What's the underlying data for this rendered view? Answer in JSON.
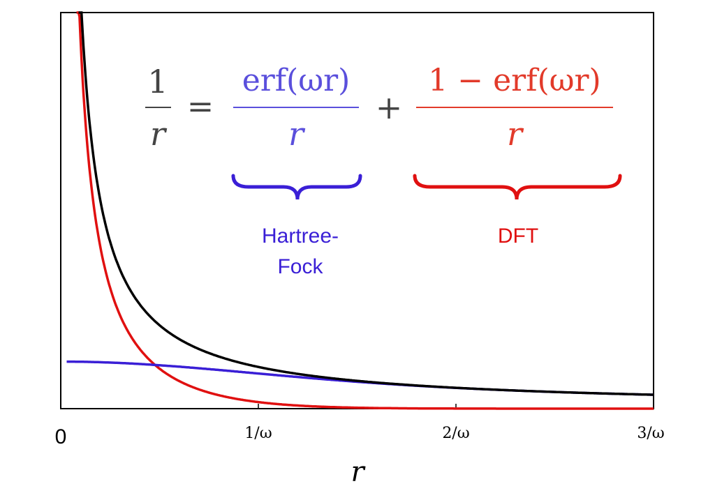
{
  "chart_data": {
    "type": "line",
    "title": "",
    "xlabel": "r",
    "ylabel": "",
    "xlim": [
      0,
      3
    ],
    "ylim": [
      0,
      9.5
    ],
    "omega": 1,
    "x_ticks": [
      {
        "value": 0,
        "label": "0"
      },
      {
        "value": 1,
        "label": "1/ω"
      },
      {
        "value": 2,
        "label": "2/ω"
      },
      {
        "value": 3,
        "label": "3/ω"
      }
    ],
    "series": [
      {
        "name": "1/r",
        "function": "coulomb",
        "color": "#000000"
      },
      {
        "name": "erf(ωr)/r",
        "function": "long_range",
        "color": "#3a1fd6"
      },
      {
        "name": "(1 − erf(ωr))/r",
        "function": "short_range",
        "color": "#e01010"
      }
    ]
  },
  "equation": {
    "lhs_num": "1",
    "lhs_den": "r",
    "equals": "=",
    "plus": "+",
    "term1_num": "erf(ωr)",
    "term1_den": "r",
    "term2_num": "1 − erf(ωr)",
    "term2_den": "r"
  },
  "annotations": {
    "long_range_line1": "Hartree-",
    "long_range_line2": "Fock",
    "short_range": "DFT"
  },
  "colors": {
    "black": "#000000",
    "blue": "#3a1fd6",
    "eq_blue": "#5a4fdc",
    "red": "#e01010",
    "eq_red": "#e23a2a",
    "eq_gray": "#444444"
  }
}
